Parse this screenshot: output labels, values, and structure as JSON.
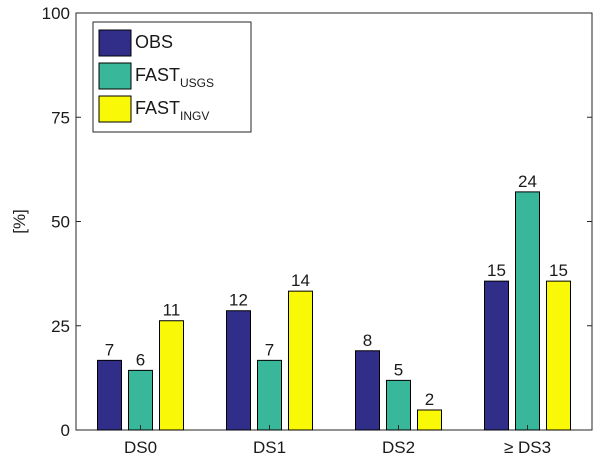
{
  "chart_data": {
    "type": "bar",
    "categories": [
      "DS0",
      "DS1",
      "DS2",
      "≥ DS3"
    ],
    "ylabel": "[%]",
    "xlabel": "",
    "ylim": [
      0,
      100
    ],
    "yticks": [
      0,
      25,
      50,
      75,
      100
    ],
    "grid": false,
    "legend_position": "top-left",
    "series": [
      {
        "name": "OBS",
        "legend_main": "OBS",
        "legend_sub": "",
        "color": "#312e8a",
        "values": [
          16.7,
          28.6,
          19.0,
          35.7
        ],
        "labels": [
          "7",
          "12",
          "8",
          "15"
        ]
      },
      {
        "name": "FAST_USGS",
        "legend_main": "FAST",
        "legend_sub": "USGS",
        "color": "#38b79a",
        "values": [
          14.3,
          16.7,
          11.9,
          57.1
        ],
        "labels": [
          "6",
          "7",
          "5",
          "24"
        ]
      },
      {
        "name": "FAST_INGV",
        "legend_main": "FAST",
        "legend_sub": "INGV",
        "color": "#f9f907",
        "values": [
          26.2,
          33.3,
          4.8,
          35.7
        ],
        "labels": [
          "11",
          "14",
          "2",
          "15"
        ]
      }
    ]
  }
}
